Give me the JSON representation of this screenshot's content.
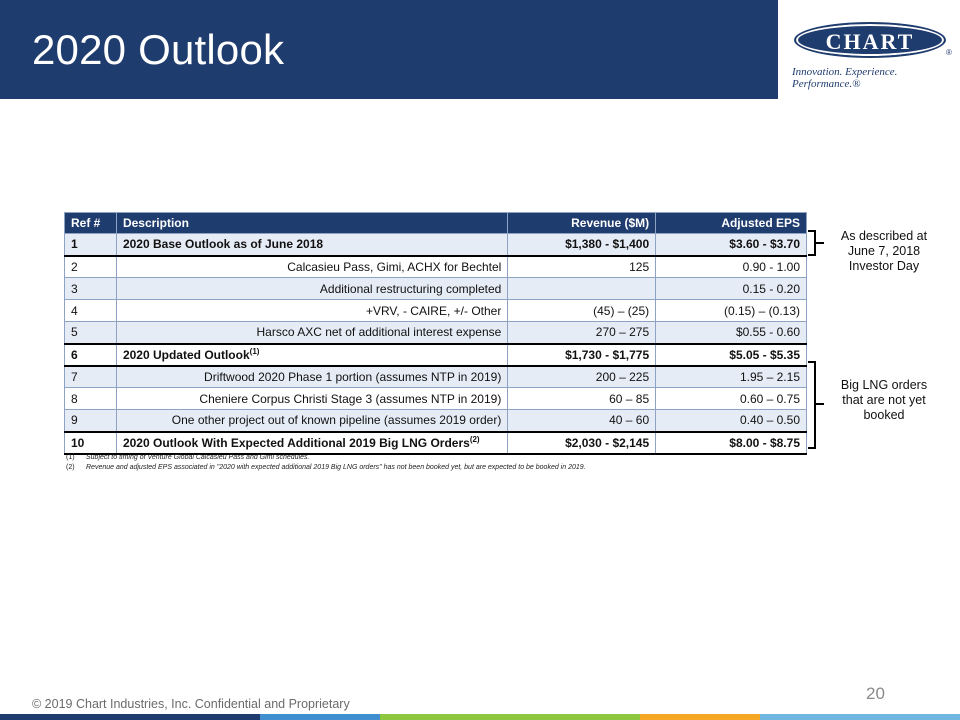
{
  "header": {
    "title": "2020 Outlook"
  },
  "logo": {
    "text": "CHART",
    "registered": "®",
    "tagline": "Innovation. Experience. Performance.®"
  },
  "table": {
    "headers": [
      "Ref #",
      "Description",
      "Revenue ($M)",
      "Adjusted EPS"
    ],
    "rows": [
      {
        "ref": "1",
        "desc": "2020 Base Outlook as of June 2018",
        "desc_sup": "",
        "rev": "$1,380 - $1,400",
        "eps": "$3.60 - $3.70"
      },
      {
        "ref": "2",
        "desc": "Calcasieu Pass, Gimi, ACHX for Bechtel",
        "desc_sup": "",
        "rev": "125",
        "eps": "0.90 - 1.00"
      },
      {
        "ref": "3",
        "desc": "Additional restructuring completed",
        "desc_sup": "",
        "rev": "",
        "eps": "0.15 - 0.20"
      },
      {
        "ref": "4",
        "desc": "+VRV, - CAIRE, +/- Other",
        "desc_sup": "",
        "rev": "(45) – (25)",
        "eps": "(0.15) – (0.13)"
      },
      {
        "ref": "5",
        "desc": "Harsco AXC net of additional interest expense",
        "desc_sup": "",
        "rev": "270 – 275",
        "eps": "$0.55 - 0.60"
      },
      {
        "ref": "6",
        "desc": "2020 Updated Outlook",
        "desc_sup": "(1)",
        "rev": "$1,730 - $1,775",
        "eps": "$5.05 - $5.35"
      },
      {
        "ref": "7",
        "desc": "Driftwood 2020 Phase 1 portion (assumes NTP in 2019)",
        "desc_sup": "",
        "rev": "200 – 225",
        "eps": "1.95 – 2.15"
      },
      {
        "ref": "8",
        "desc": "Cheniere Corpus Christi Stage 3 (assumes NTP in 2019)",
        "desc_sup": "",
        "rev": "60 – 85",
        "eps": "0.60 – 0.75"
      },
      {
        "ref": "9",
        "desc": "One other project out of known pipeline (assumes 2019 order)",
        "desc_sup": "",
        "rev": "40 – 60",
        "eps": "0.40 – 0.50"
      },
      {
        "ref": "10",
        "desc": "2020 Outlook With Expected Additional 2019 Big LNG Orders",
        "desc_sup": "(2)",
        "rev": "$2,030 - $2,145",
        "eps": "$8.00 - $8.75"
      }
    ]
  },
  "footnotes": [
    {
      "num": "(1)",
      "text": "Subject to timing of Venture Global Calcasieu Pass and Gimi schedules."
    },
    {
      "num": "(2)",
      "text": "Revenue and adjusted EPS associated in \"2020 with expected additional 2019 Big LNG orders\" has not been booked yet, but are expected to be booked in 2019."
    }
  ],
  "notes": {
    "investor_day": "As described at June 7, 2018 Investor Day",
    "big_lng": "Big LNG orders that are not yet booked"
  },
  "footer": {
    "page_number": "20",
    "copyright": "© 2019 Chart Industries, Inc. Confidential and Proprietary"
  },
  "colors": {
    "header_bg": "#1f3c6e",
    "bottom_bar": [
      "#1f3c6e",
      "#3f8fd0",
      "#8dc63f",
      "#f5a623",
      "#6fb7e0"
    ]
  }
}
